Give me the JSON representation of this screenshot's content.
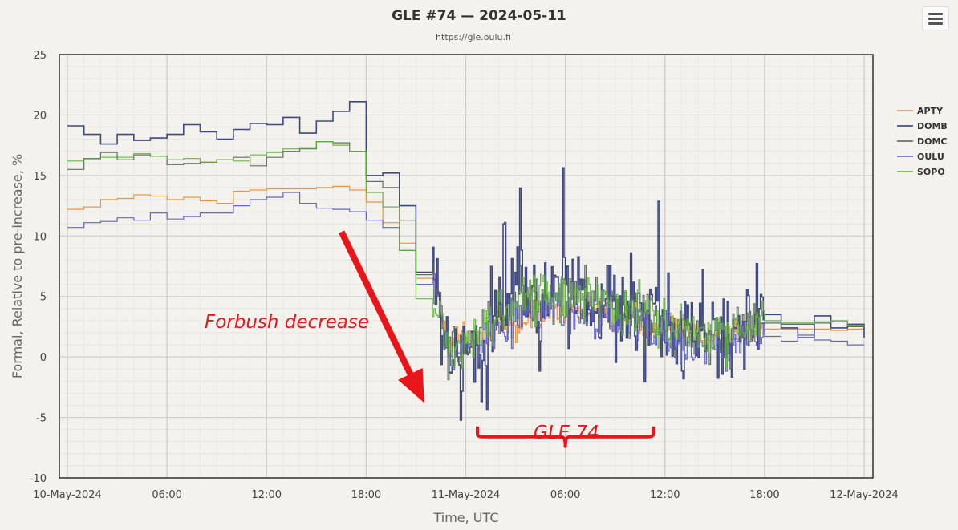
{
  "chart_data": {
    "type": "line",
    "title": "GLE #74 — 2024-05-11",
    "subtitle": "https://gle.oulu.fi",
    "xlabel": "Time, UTC",
    "ylabel": "Formal, Relative to pre-increase, %",
    "ylim": [
      -10,
      25
    ],
    "xlim_hours_from_10_May_2024_00UTC": [
      0,
      48
    ],
    "y_ticks": [
      "25",
      "20",
      "15",
      "10",
      "5",
      "0",
      "-5",
      "-10"
    ],
    "x_ticks": [
      "10-May-2024",
      "06:00",
      "12:00",
      "18:00",
      "11-May-2024",
      "06:00",
      "12:00",
      "18:00",
      "12-May-2024"
    ],
    "grid": true,
    "legend_position": "right",
    "series": [
      {
        "name": "APTY",
        "color": "#ee8a2e",
        "hourly": [
          12.2,
          12.4,
          13.0,
          13.1,
          13.4,
          13.3,
          13.0,
          13.2,
          12.9,
          12.7,
          13.7,
          13.8,
          13.9,
          13.9,
          13.9,
          14.0,
          14.1,
          13.8,
          12.8,
          11.1,
          9.4,
          6.5
        ],
        "event_level": [
          0.5,
          2.0,
          2.5,
          4.0,
          3.5,
          3.0,
          2.0,
          1.8,
          2.5
        ],
        "tail": [
          2.3,
          2.3,
          2.3,
          2.3,
          2.2,
          2.3,
          2.4
        ]
      },
      {
        "name": "DOMB",
        "color": "#2a3675",
        "hourly": [
          19.1,
          18.4,
          17.6,
          18.4,
          17.9,
          18.1,
          18.4,
          19.2,
          18.6,
          18.0,
          18.8,
          19.3,
          19.2,
          19.8,
          18.5,
          19.5,
          20.3,
          21.1,
          15.0,
          15.2,
          12.5,
          7.0
        ],
        "event_level": [
          -1.0,
          0.5,
          5.5,
          6.0,
          5.0,
          4.0,
          2.0,
          1.5,
          3.0
        ],
        "tail": [
          3.5,
          2.4,
          1.6,
          3.4,
          2.4,
          2.7,
          1.6
        ]
      },
      {
        "name": "DOMC",
        "color": "#4e5f55",
        "hourly": [
          15.5,
          16.4,
          16.9,
          16.3,
          16.7,
          16.6,
          15.9,
          16.0,
          16.1,
          16.3,
          16.5,
          15.8,
          16.5,
          17.0,
          17.2,
          17.8,
          17.7,
          17.0,
          14.5,
          14.0,
          11.3,
          6.8
        ],
        "event_level": [
          -0.5,
          1.0,
          4.5,
          5.0,
          4.5,
          3.5,
          2.0,
          1.5,
          2.8
        ],
        "tail": [
          2.8,
          2.7,
          2.7,
          2.8,
          2.9,
          2.5,
          2.4
        ]
      },
      {
        "name": "OULU",
        "color": "#5757c0",
        "hourly": [
          10.7,
          11.1,
          11.2,
          11.5,
          11.3,
          11.9,
          11.4,
          11.6,
          11.9,
          11.9,
          12.5,
          13.0,
          13.2,
          13.6,
          12.7,
          12.3,
          12.2,
          12.0,
          11.3,
          10.7,
          8.8,
          6.0
        ],
        "event_level": [
          -0.5,
          1.0,
          3.5,
          3.8,
          3.2,
          2.5,
          1.0,
          0.5,
          1.8
        ],
        "tail": [
          1.7,
          1.3,
          1.8,
          1.4,
          1.3,
          1.0,
          1.0
        ]
      },
      {
        "name": "SOPO",
        "color": "#5aae35",
        "hourly": [
          16.2,
          16.3,
          16.5,
          16.5,
          16.8,
          16.6,
          16.3,
          16.4,
          16.1,
          16.3,
          16.2,
          16.7,
          16.9,
          17.2,
          17.3,
          17.8,
          17.5,
          17.0,
          13.6,
          12.4,
          8.8,
          4.8
        ],
        "event_level": [
          0.0,
          1.5,
          4.8,
          5.3,
          4.8,
          3.8,
          2.2,
          1.8,
          3.2
        ],
        "tail": [
          3.0,
          2.8,
          2.8,
          2.9,
          3.0,
          2.6,
          2.5
        ]
      }
    ],
    "annotations": [
      {
        "text": "Forbush decrease",
        "arrow_from": [
          16.6,
          10.1
        ],
        "arrow_to": [
          21.5,
          -3.8
        ]
      },
      {
        "text": "GLE 74",
        "brace_from_hour": 24.7,
        "brace_to_hour": 35.3,
        "brace_y": -6.6
      }
    ]
  },
  "ui": {
    "menu_icon": "hamburger-menu-icon"
  }
}
